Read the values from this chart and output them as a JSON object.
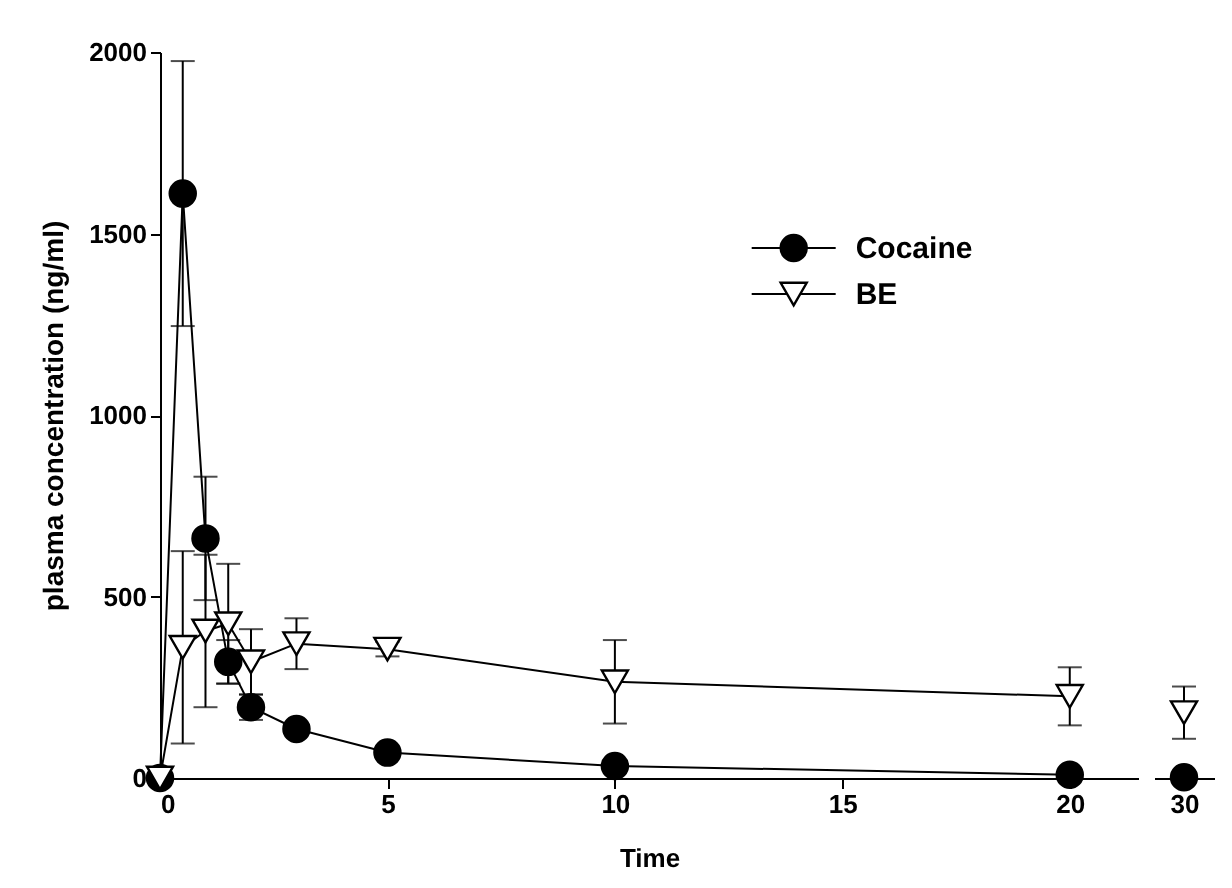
{
  "chart_data": [
    {
      "type": "line",
      "xlabel": "Time",
      "ylabel": "plasma concentration (ng/ml)",
      "x": [
        0,
        0.5,
        1,
        1.5,
        2,
        3,
        5,
        10,
        20
      ],
      "xlim": [
        0,
        21.5
      ],
      "xticks": [
        0,
        5,
        10,
        15,
        20
      ],
      "ylim": [
        0,
        2000
      ],
      "yticks": [
        0,
        500,
        1000,
        1500,
        2000
      ],
      "grid": false,
      "legend": "top right",
      "line_style": "solid",
      "series": [
        {
          "name": "Cocaine",
          "color": "#000000",
          "marker": "circle",
          "values": [
            0,
            1610,
            660,
            320,
            195,
            135,
            70,
            33,
            9
          ],
          "errors": [
            null,
            365,
            170,
            60,
            35,
            null,
            null,
            null,
            null
          ]
        },
        {
          "name": "BE",
          "color": "#000000",
          "marker": "triangle",
          "values": [
            0,
            360,
            405,
            425,
            320,
            370,
            355,
            265,
            225
          ],
          "errors": [
            null,
            265,
            210,
            165,
            90,
            70,
            20,
            115,
            80
          ]
        }
      ]
    },
    {
      "type": "line",
      "categories": [
        "30"
      ],
      "ylim": [
        0,
        2000
      ],
      "tick_labels": "x",
      "grid": false,
      "series": [
        {
          "color": "#000000",
          "marker": "circle",
          "values": [
            2
          ],
          "errors": [
            null
          ]
        },
        {
          "color": "#000000",
          "marker": "triangle",
          "values": [
            180
          ],
          "errors": [
            72
          ]
        }
      ]
    }
  ]
}
